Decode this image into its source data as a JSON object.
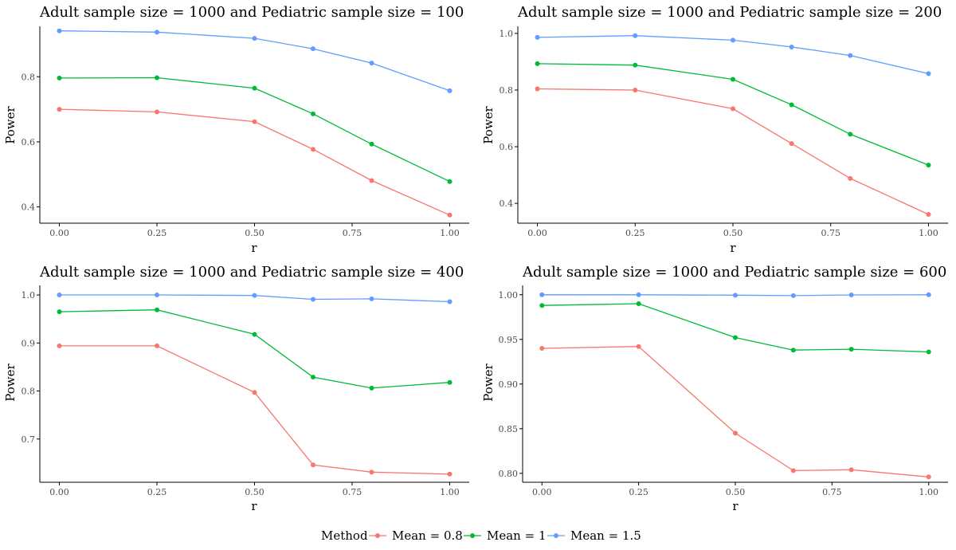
{
  "colors": {
    "series": [
      "#F8766D",
      "#00BA38",
      "#619CFF"
    ],
    "axis": "#000000",
    "tick_text": "#4d4d4d"
  },
  "legend": {
    "title": "Method",
    "placement": "bottom",
    "entries": [
      "Mean = 0.8",
      "Mean = 1",
      "Mean = 1.5"
    ]
  },
  "chart_data": [
    {
      "type": "line",
      "title": "Adult sample size = 1000 and Pediatric sample size = 100",
      "xlabel": "r",
      "ylabel": "Power",
      "grid": false,
      "x": [
        0,
        0.25,
        0.5,
        0.65,
        0.8,
        1
      ],
      "xlim": [
        -0.05,
        1.05
      ],
      "ylim": [
        0.35,
        0.955
      ],
      "xticks": [
        0,
        0.25,
        0.5,
        0.75,
        1
      ],
      "xtick_labels": [
        "0.00",
        "0.25",
        "0.50",
        "0.75",
        "1.00"
      ],
      "yticks": [
        0.4,
        0.6,
        0.8
      ],
      "ytick_labels": [
        "0.4",
        "0.6",
        "0.8"
      ],
      "series": [
        {
          "name": "Mean = 0.8",
          "values": [
            0.7,
            0.692,
            0.662,
            0.577,
            0.481,
            0.375
          ]
        },
        {
          "name": "Mean = 1",
          "values": [
            0.796,
            0.797,
            0.765,
            0.686,
            0.593,
            0.478
          ]
        },
        {
          "name": "Mean = 1.5",
          "values": [
            0.941,
            0.937,
            0.918,
            0.886,
            0.842,
            0.757
          ]
        }
      ]
    },
    {
      "type": "line",
      "title": "Adult sample size = 1000 and Pediatric sample size = 200",
      "xlabel": "r",
      "ylabel": "Power",
      "grid": false,
      "x": [
        0,
        0.25,
        0.5,
        0.65,
        0.8,
        1
      ],
      "xlim": [
        -0.05,
        1.05
      ],
      "ylim": [
        0.33,
        1.025
      ],
      "xticks": [
        0,
        0.25,
        0.5,
        0.75,
        1
      ],
      "xtick_labels": [
        "0.00",
        "0.25",
        "0.50",
        "0.75",
        "1.00"
      ],
      "yticks": [
        0.4,
        0.6,
        0.8,
        1.0
      ],
      "ytick_labels": [
        "0.4",
        "0.6",
        "0.8",
        "1.0"
      ],
      "series": [
        {
          "name": "Mean = 0.8",
          "values": [
            0.804,
            0.8,
            0.734,
            0.611,
            0.488,
            0.361
          ]
        },
        {
          "name": "Mean = 1",
          "values": [
            0.893,
            0.888,
            0.838,
            0.748,
            0.644,
            0.535
          ]
        },
        {
          "name": "Mean = 1.5",
          "values": [
            0.986,
            0.992,
            0.976,
            0.952,
            0.922,
            0.858
          ]
        }
      ]
    },
    {
      "type": "line",
      "title": "Adult sample size = 1000 and Pediatric sample size = 400",
      "xlabel": "r",
      "ylabel": "Power",
      "grid": false,
      "x": [
        0,
        0.25,
        0.5,
        0.65,
        0.8,
        1
      ],
      "xlim": [
        -0.05,
        1.05
      ],
      "ylim": [
        0.61,
        1.02
      ],
      "xticks": [
        0,
        0.25,
        0.5,
        0.75,
        1
      ],
      "xtick_labels": [
        "0.00",
        "0.25",
        "0.50",
        "0.75",
        "1.00"
      ],
      "yticks": [
        0.7,
        0.8,
        0.9,
        1.0
      ],
      "ytick_labels": [
        "0.7",
        "0.8",
        "0.9",
        "1.0"
      ],
      "series": [
        {
          "name": "Mean = 0.8",
          "values": [
            0.894,
            0.894,
            0.797,
            0.646,
            0.631,
            0.627
          ]
        },
        {
          "name": "Mean = 1",
          "values": [
            0.965,
            0.969,
            0.918,
            0.829,
            0.806,
            0.818
          ]
        },
        {
          "name": "Mean = 1.5",
          "values": [
            1.0,
            1.0,
            0.999,
            0.991,
            0.992,
            0.986
          ]
        }
      ]
    },
    {
      "type": "line",
      "title": "Adult sample size = 1000 and Pediatric sample size = 600",
      "xlabel": "r",
      "ylabel": "Power",
      "grid": false,
      "x": [
        0,
        0.25,
        0.5,
        0.65,
        0.8,
        1
      ],
      "xlim": [
        -0.05,
        1.05
      ],
      "ylim": [
        0.79,
        1.0105
      ],
      "xticks": [
        0,
        0.25,
        0.5,
        0.75,
        1
      ],
      "xtick_labels": [
        "0.00",
        "0.25",
        "0.50",
        "0.75",
        "1.00"
      ],
      "yticks": [
        0.8,
        0.85,
        0.9,
        0.95,
        1.0
      ],
      "ytick_labels": [
        "0.80",
        "0.85",
        "0.90",
        "0.95",
        "1.00"
      ],
      "series": [
        {
          "name": "Mean = 0.8",
          "values": [
            0.94,
            0.942,
            0.845,
            0.803,
            0.804,
            0.796
          ]
        },
        {
          "name": "Mean = 1",
          "values": [
            0.988,
            0.99,
            0.952,
            0.938,
            0.939,
            0.936
          ]
        },
        {
          "name": "Mean = 1.5",
          "values": [
            1.0,
            1.0,
            0.9995,
            0.999,
            0.9998,
            1.0
          ]
        }
      ]
    }
  ]
}
